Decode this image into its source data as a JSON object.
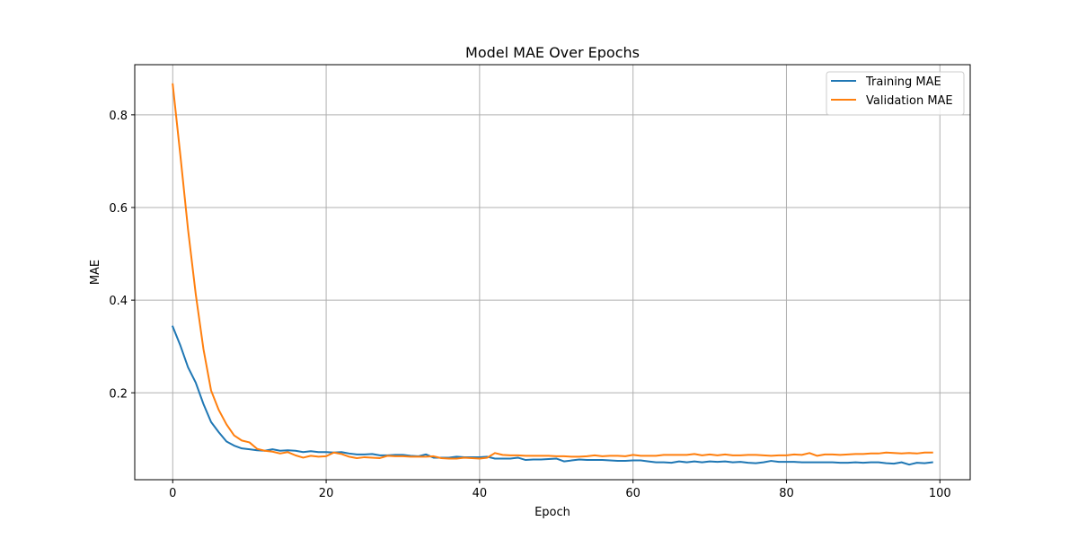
{
  "chart_data": {
    "type": "line",
    "title": "Model MAE Over Epochs",
    "xlabel": "Epoch",
    "ylabel": "MAE",
    "xlim": [
      -4.95,
      103.95
    ],
    "ylim": [
      0.0124,
      0.9083
    ],
    "xticks": [
      0,
      20,
      40,
      60,
      80,
      100
    ],
    "yticks": [
      0.2,
      0.4,
      0.6,
      0.8
    ],
    "ytick_labels": [
      "0.2",
      "0.4",
      "0.6",
      "0.8"
    ],
    "grid": true,
    "legend_position": "top-right",
    "x": [
      0,
      1,
      2,
      3,
      4,
      5,
      6,
      7,
      8,
      9,
      10,
      11,
      12,
      13,
      14,
      15,
      16,
      17,
      18,
      19,
      20,
      21,
      22,
      23,
      24,
      25,
      26,
      27,
      28,
      29,
      30,
      31,
      32,
      33,
      34,
      35,
      36,
      37,
      38,
      39,
      40,
      41,
      42,
      43,
      44,
      45,
      46,
      47,
      48,
      49,
      50,
      51,
      52,
      53,
      54,
      55,
      56,
      57,
      58,
      59,
      60,
      61,
      62,
      63,
      64,
      65,
      66,
      67,
      68,
      69,
      70,
      71,
      72,
      73,
      74,
      75,
      76,
      77,
      78,
      79,
      80,
      81,
      82,
      83,
      84,
      85,
      86,
      87,
      88,
      89,
      90,
      91,
      92,
      93,
      94,
      95,
      96,
      97,
      98,
      99
    ],
    "series": [
      {
        "name": "Training MAE",
        "color": "#1f77b4",
        "values": [
          0.343,
          0.302,
          0.255,
          0.222,
          0.176,
          0.137,
          0.115,
          0.095,
          0.086,
          0.08,
          0.078,
          0.076,
          0.075,
          0.078,
          0.075,
          0.076,
          0.075,
          0.072,
          0.074,
          0.072,
          0.072,
          0.071,
          0.072,
          0.069,
          0.067,
          0.067,
          0.068,
          0.065,
          0.065,
          0.066,
          0.066,
          0.064,
          0.063,
          0.067,
          0.06,
          0.06,
          0.06,
          0.062,
          0.061,
          0.061,
          0.061,
          0.062,
          0.058,
          0.058,
          0.058,
          0.06,
          0.055,
          0.056,
          0.056,
          0.057,
          0.058,
          0.052,
          0.054,
          0.056,
          0.055,
          0.055,
          0.055,
          0.054,
          0.053,
          0.053,
          0.054,
          0.054,
          0.052,
          0.05,
          0.05,
          0.049,
          0.052,
          0.05,
          0.052,
          0.05,
          0.052,
          0.051,
          0.052,
          0.05,
          0.051,
          0.049,
          0.048,
          0.05,
          0.053,
          0.051,
          0.051,
          0.051,
          0.05,
          0.05,
          0.05,
          0.05,
          0.05,
          0.049,
          0.049,
          0.05,
          0.049,
          0.05,
          0.05,
          0.048,
          0.047,
          0.05,
          0.045,
          0.049,
          0.048,
          0.05
        ]
      },
      {
        "name": "Validation MAE",
        "color": "#ff7f0e",
        "values": [
          0.866,
          0.712,
          0.552,
          0.413,
          0.295,
          0.205,
          0.163,
          0.132,
          0.108,
          0.097,
          0.093,
          0.079,
          0.075,
          0.073,
          0.069,
          0.072,
          0.065,
          0.06,
          0.064,
          0.062,
          0.063,
          0.071,
          0.068,
          0.062,
          0.059,
          0.061,
          0.06,
          0.059,
          0.064,
          0.063,
          0.063,
          0.062,
          0.062,
          0.062,
          0.063,
          0.059,
          0.058,
          0.058,
          0.06,
          0.059,
          0.058,
          0.06,
          0.07,
          0.066,
          0.065,
          0.065,
          0.064,
          0.064,
          0.064,
          0.064,
          0.063,
          0.063,
          0.062,
          0.062,
          0.063,
          0.065,
          0.063,
          0.064,
          0.064,
          0.063,
          0.066,
          0.064,
          0.064,
          0.064,
          0.066,
          0.066,
          0.066,
          0.066,
          0.068,
          0.065,
          0.067,
          0.065,
          0.067,
          0.065,
          0.065,
          0.066,
          0.066,
          0.065,
          0.064,
          0.065,
          0.065,
          0.067,
          0.066,
          0.07,
          0.064,
          0.067,
          0.067,
          0.066,
          0.067,
          0.068,
          0.068,
          0.069,
          0.069,
          0.071,
          0.07,
          0.069,
          0.07,
          0.069,
          0.071,
          0.071
        ]
      }
    ]
  }
}
